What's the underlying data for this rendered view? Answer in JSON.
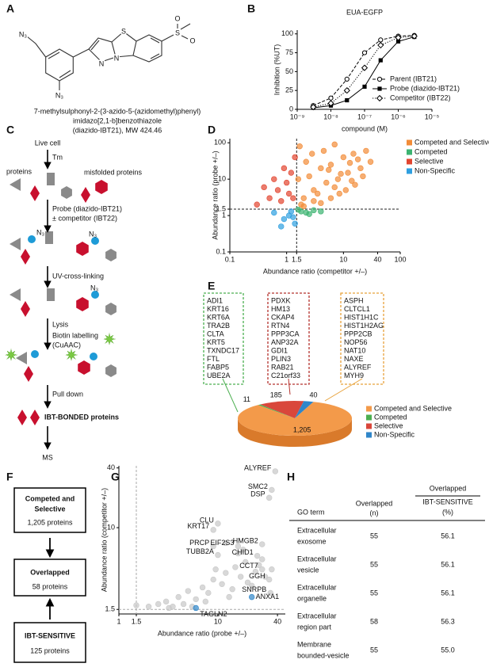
{
  "panel_letters": [
    "A",
    "B",
    "C",
    "D",
    "E",
    "F",
    "G",
    "H"
  ],
  "panel_a": {
    "atoms": [
      "N₃",
      "N₃",
      "N",
      "N",
      "S",
      "S",
      "O",
      "O"
    ],
    "caption": [
      "7-methylsulphonyl-2-(3-azido-5-(azidomethyl)phenyl)",
      "imidazo[2,1-b]benzothiazole",
      "(diazido-IBT21), MW 424.46"
    ]
  },
  "panel_c": {
    "live_cell": "Live cell",
    "tm": "Tm",
    "proteins": "proteins",
    "misfolded": "misfolded proteins",
    "probe": "Probe (diazido-IBT21)",
    "competitor": "± competitor (IBT22)",
    "uv": "UV-cross-linking",
    "lysis": "Lysis",
    "biotin": "Biotin labelling",
    "cuaac": "(CuAAC)",
    "pulldown": "Pull down",
    "bonded": "IBT-BONDED proteins",
    "ms": "MS",
    "n3": "N₃"
  },
  "panel_e": {
    "boxes": [
      [
        "ADI1",
        "KRT16",
        "KRT6A",
        "TRA2B",
        "CLTA",
        "KRT5",
        "TXNDC17",
        "FTL",
        "FABP5",
        "UBE2A"
      ],
      [
        "PDXK",
        "HM13",
        "CKAP4",
        "RTN4",
        "PPP3CA",
        "ANP32A",
        "GDI1",
        "PLIN3",
        "RAB21",
        "C21orf33"
      ],
      [
        "ASPH",
        "CLTCL1",
        "HIST1H1C",
        "HIST1H2AG",
        "PPP2CB",
        "NOP56",
        "NAT10",
        "NAXE",
        "ALYREF",
        "MYH9"
      ]
    ]
  },
  "panel_f": {
    "boxes": [
      {
        "title": [
          "Competed and",
          "Selective"
        ],
        "count": "1,205 proteins"
      },
      {
        "title": [
          "Overlapped"
        ],
        "count": "58 proteins"
      },
      {
        "title": [
          "IBT-SENSITIVE"
        ],
        "count": "125 proteins"
      }
    ]
  },
  "panel_h": {
    "header": {
      "term": "GO term",
      "overlapped": [
        "Overlapped",
        "(n)"
      ],
      "ratio": [
        "Overlapped",
        "IBT-SENSITIVE",
        "(%)"
      ]
    },
    "rows": [
      {
        "term": [
          "Extracellular",
          "exosome"
        ],
        "n": "55",
        "pct": "56.1"
      },
      {
        "term": [
          "Extracellular",
          "vesicle"
        ],
        "n": "55",
        "pct": "56.1"
      },
      {
        "term": [
          "Extracellular",
          "organelle"
        ],
        "n": "55",
        "pct": "56.1"
      },
      {
        "term": [
          "Extracellular",
          "region part"
        ],
        "n": "58",
        "pct": "56.3"
      },
      {
        "term": [
          "Membrane",
          "bounded-vesicle"
        ],
        "n": "55",
        "pct": "55.0"
      }
    ]
  },
  "chart_data": [
    {
      "type": "line",
      "title": "EUA-EGFP",
      "xlabel": "compound (M)",
      "ylabel": "Inhibition (%UT)",
      "xscale": "log",
      "x": [
        3e-09,
        1e-08,
        3e-08,
        1e-07,
        3e-07,
        1e-06,
        3e-06
      ],
      "xlim": [
        1e-09,
        1e-05
      ],
      "xticks": [
        {
          "value": 1e-09,
          "label": "10⁻⁹"
        },
        {
          "value": 1e-08,
          "label": "10⁻⁸"
        },
        {
          "value": 1e-07,
          "label": "10⁻⁷"
        },
        {
          "value": 1e-06,
          "label": "10⁻⁶"
        },
        {
          "value": 1e-05,
          "label": "10⁻⁵"
        }
      ],
      "ylim": [
        0,
        105
      ],
      "yticks": [
        0,
        25,
        50,
        75,
        100
      ],
      "legend": "lower right",
      "series": [
        {
          "name": "Parent (IBT21)",
          "color": "#000000",
          "marker": "circle-open",
          "line": "dashed",
          "values": [
            5,
            15,
            40,
            75,
            92,
            97,
            98
          ]
        },
        {
          "name": "Probe (diazido-IBT21)",
          "color": "#000000",
          "marker": "square",
          "line": "solid",
          "values": [
            2,
            5,
            12,
            30,
            65,
            90,
            96
          ]
        },
        {
          "name": "Competitor (IBT22)",
          "color": "#000000",
          "marker": "diamond-open",
          "line": "dotted",
          "values": [
            3,
            8,
            25,
            55,
            85,
            95,
            97
          ]
        }
      ]
    },
    {
      "type": "scatter",
      "xlabel": "Abundance ratio (competitor +/–)",
      "ylabel": "Abundance ratio (probe +/–)",
      "xscale": "log",
      "yscale": "log",
      "xlim": [
        0.1,
        100
      ],
      "ylim": [
        0.1,
        130
      ],
      "xticks": [
        0.1,
        1,
        1.5,
        10,
        40,
        100
      ],
      "yticks": [
        0.1,
        1,
        1.5,
        10,
        100
      ],
      "xref": 1.5,
      "yref": 1.5,
      "legend": "upper right",
      "series": [
        {
          "name": "Competed and Selective",
          "color": "#f28c38",
          "x": [
            2,
            3,
            5,
            8,
            12,
            20,
            30,
            2.5,
            4,
            6,
            10,
            15,
            25,
            1.8,
            3.5,
            7,
            9,
            14,
            18,
            4.5,
            2.2,
            1.7,
            6,
            11,
            3,
            5.5,
            8.5,
            13,
            22,
            2.8,
            1.6,
            2,
            4,
            7,
            16
          ],
          "values": [
            3,
            5,
            8,
            10,
            15,
            20,
            30,
            12,
            20,
            25,
            40,
            50,
            60,
            2,
            4,
            6,
            14,
            9,
            35,
            60,
            30,
            80,
            3,
            5,
            2.5,
            18,
            4,
            28,
            12,
            50,
            10,
            1.8,
            2.2,
            90,
            7
          ]
        },
        {
          "name": "Competed",
          "color": "#3cb371",
          "x": [
            1.8,
            2.2,
            3,
            2.5,
            1.6,
            4
          ],
          "values": [
            1.3,
            1.2,
            1.4,
            1.1,
            1.45,
            1.3
          ]
        },
        {
          "name": "Selective",
          "color": "#e2452f",
          "x": [
            0.3,
            0.5,
            0.7,
            1,
            1.2,
            0.8,
            1.4,
            0.6,
            1.1,
            0.9,
            0.4,
            1.3
          ],
          "values": [
            2,
            3,
            5,
            8,
            15,
            2.5,
            40,
            10,
            4,
            20,
            6,
            3
          ]
        },
        {
          "name": "Non-Specific",
          "color": "#2e9fe0",
          "x": [
            0.6,
            0.9,
            1.2,
            1.4,
            0.8,
            1.1,
            1.3
          ],
          "values": [
            1.2,
            0.8,
            1.3,
            0.6,
            0.5,
            1.0,
            0.9
          ]
        }
      ]
    },
    {
      "type": "pie",
      "categories": [
        "Competed and Selective",
        "Competed",
        "Selective",
        "Non-Specific"
      ],
      "values": [
        1205,
        11,
        185,
        40
      ],
      "value_labels": [
        "1,205",
        "11",
        "185",
        "40"
      ],
      "colors": [
        "#f39a4a",
        "#4caf50",
        "#d9473b",
        "#2f86c9"
      ]
    },
    {
      "type": "scatter",
      "xlabel": "Abundance ratio (probe +/–)",
      "ylabel": "Abundance ratio (competitor +/–)",
      "xscale": "log",
      "yscale": "log",
      "xlim": [
        1,
        48
      ],
      "ylim": [
        1.35,
        42
      ],
      "xticks": [
        1,
        1.5,
        10,
        40
      ],
      "yticks": [
        1.5,
        10,
        40
      ],
      "xref": 1.5,
      "yref": 1.5,
      "series": [
        {
          "color": "#c8c8c8",
          "x": [
            2,
            2.5,
            3,
            3.5,
            4,
            4.5,
            5,
            6,
            7,
            8,
            9,
            11,
            12,
            14,
            15,
            17,
            19,
            20,
            24,
            26,
            30,
            5.5,
            7.5,
            13,
            16,
            18,
            22,
            28,
            3.2,
            1.5,
            9.5,
            12,
            35
          ],
          "values": [
            1.6,
            1.7,
            1.8,
            1.6,
            2,
            1.7,
            2.3,
            1.9,
            2.5,
            2.2,
            3,
            2.7,
            3.5,
            2.4,
            4,
            3.2,
            4.5,
            2.8,
            3.6,
            4.2,
            3.2,
            1.6,
            1.8,
            2,
            5.5,
            6,
            2.6,
            4.8,
            1.55,
            1.65,
            3.8,
            7,
            3.8
          ]
        },
        {
          "color": "#c8c8c8",
          "label_color": "#888888",
          "labels": [
            "ALYREF",
            "SMC2",
            "DSP",
            "CLU",
            "KRT17",
            "PRCP",
            "EIF2S3",
            "HMGB2",
            "TUBB2A",
            "CHID1",
            "CCT7",
            "GGH",
            "SNRPB"
          ],
          "x": [
            38,
            35,
            33,
            10,
            9,
            9,
            16,
            28,
            10,
            25,
            28,
            33,
            34
          ],
          "values": [
            37,
            24,
            20,
            11,
            9.5,
            6.5,
            6.5,
            6.8,
            5.3,
            5.2,
            3.8,
            3.0,
            2.2
          ]
        },
        {
          "color": "#2f86c9",
          "label_color": "#2f6fb8",
          "labels": [
            "ANXA1",
            "TAGLN2"
          ],
          "x": [
            22,
            6
          ],
          "values": [
            2.0,
            1.55
          ]
        }
      ]
    }
  ]
}
